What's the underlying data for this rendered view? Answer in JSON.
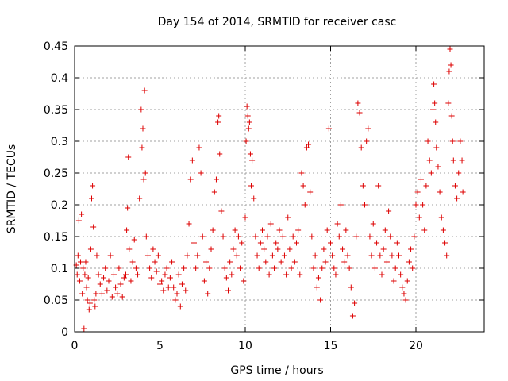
{
  "chart_data": {
    "type": "scatter",
    "title": "Day 154 of 2014, SRMTID for receiver casc",
    "xlabel": "GPS time / hours",
    "ylabel": "SRMTID / TECUs",
    "xlim": [
      0,
      24
    ],
    "ylim": [
      0,
      0.45
    ],
    "xticks": [
      {
        "value": 0,
        "label": "0"
      },
      {
        "value": 5,
        "label": "5"
      },
      {
        "value": 10,
        "label": "10"
      },
      {
        "value": 15,
        "label": "15"
      },
      {
        "value": 20,
        "label": "20"
      }
    ],
    "yticks": [
      {
        "value": 0,
        "label": "0"
      },
      {
        "value": 0.05,
        "label": "0.05"
      },
      {
        "value": 0.1,
        "label": "0.1"
      },
      {
        "value": 0.15,
        "label": "0.15"
      },
      {
        "value": 0.2,
        "label": "0.2"
      },
      {
        "value": 0.25,
        "label": "0.25"
      },
      {
        "value": 0.3,
        "label": "0.3"
      },
      {
        "value": 0.35,
        "label": "0.35"
      },
      {
        "value": 0.4,
        "label": "0.4"
      },
      {
        "value": 0.45,
        "label": "0.45"
      }
    ],
    "grid": true,
    "marker": "+",
    "color": "#dd0000",
    "series": [
      {
        "name": "SRMTID",
        "points": [
          [
            0.1,
            0.105
          ],
          [
            0.15,
            0.09
          ],
          [
            0.2,
            0.12
          ],
          [
            0.25,
            0.175
          ],
          [
            0.3,
            0.08
          ],
          [
            0.35,
            0.11
          ],
          [
            0.4,
            0.185
          ],
          [
            0.45,
            0.06
          ],
          [
            0.5,
            0.1
          ],
          [
            0.55,
            0.005
          ],
          [
            0.6,
            0.09
          ],
          [
            0.65,
            0.11
          ],
          [
            0.7,
            0.07
          ],
          [
            0.75,
            0.05
          ],
          [
            0.8,
            0.085
          ],
          [
            0.85,
            0.035
          ],
          [
            0.9,
            0.045
          ],
          [
            0.95,
            0.13
          ],
          [
            1.0,
            0.21
          ],
          [
            1.05,
            0.23
          ],
          [
            1.1,
            0.165
          ],
          [
            1.15,
            0.05
          ],
          [
            1.2,
            0.04
          ],
          [
            1.25,
            0.06
          ],
          [
            1.3,
            0.12
          ],
          [
            1.4,
            0.09
          ],
          [
            1.5,
            0.075
          ],
          [
            1.6,
            0.06
          ],
          [
            1.7,
            0.085
          ],
          [
            1.8,
            0.1
          ],
          [
            1.9,
            0.065
          ],
          [
            2.0,
            0.08
          ],
          [
            2.1,
            0.12
          ],
          [
            2.2,
            0.055
          ],
          [
            2.3,
            0.09
          ],
          [
            2.4,
            0.07
          ],
          [
            2.5,
            0.06
          ],
          [
            2.6,
            0.1
          ],
          [
            2.7,
            0.075
          ],
          [
            2.8,
            0.055
          ],
          [
            2.9,
            0.085
          ],
          [
            3.0,
            0.09
          ],
          [
            3.05,
            0.16
          ],
          [
            3.1,
            0.195
          ],
          [
            3.15,
            0.275
          ],
          [
            3.2,
            0.13
          ],
          [
            3.3,
            0.08
          ],
          [
            3.4,
            0.11
          ],
          [
            3.5,
            0.145
          ],
          [
            3.6,
            0.1
          ],
          [
            3.7,
            0.09
          ],
          [
            3.8,
            0.21
          ],
          [
            3.9,
            0.35
          ],
          [
            3.95,
            0.29
          ],
          [
            4.0,
            0.32
          ],
          [
            4.05,
            0.24
          ],
          [
            4.1,
            0.38
          ],
          [
            4.15,
            0.25
          ],
          [
            4.2,
            0.15
          ],
          [
            4.3,
            0.12
          ],
          [
            4.4,
            0.1
          ],
          [
            4.5,
            0.085
          ],
          [
            4.6,
            0.13
          ],
          [
            4.7,
            0.11
          ],
          [
            4.8,
            0.095
          ],
          [
            4.9,
            0.12
          ],
          [
            5.0,
            0.075
          ],
          [
            5.1,
            0.08
          ],
          [
            5.2,
            0.065
          ],
          [
            5.3,
            0.09
          ],
          [
            5.4,
            0.1
          ],
          [
            5.5,
            0.07
          ],
          [
            5.6,
            0.085
          ],
          [
            5.7,
            0.11
          ],
          [
            5.8,
            0.07
          ],
          [
            5.9,
            0.05
          ],
          [
            6.0,
            0.06
          ],
          [
            6.1,
            0.09
          ],
          [
            6.2,
            0.04
          ],
          [
            6.3,
            0.075
          ],
          [
            6.4,
            0.1
          ],
          [
            6.5,
            0.065
          ],
          [
            6.6,
            0.12
          ],
          [
            6.7,
            0.17
          ],
          [
            6.8,
            0.24
          ],
          [
            6.9,
            0.27
          ],
          [
            7.0,
            0.14
          ],
          [
            7.1,
            0.1
          ],
          [
            7.2,
            0.12
          ],
          [
            7.3,
            0.29
          ],
          [
            7.4,
            0.25
          ],
          [
            7.5,
            0.15
          ],
          [
            7.6,
            0.08
          ],
          [
            7.7,
            0.11
          ],
          [
            7.8,
            0.06
          ],
          [
            7.9,
            0.1
          ],
          [
            8.0,
            0.13
          ],
          [
            8.1,
            0.16
          ],
          [
            8.2,
            0.22
          ],
          [
            8.3,
            0.24
          ],
          [
            8.4,
            0.33
          ],
          [
            8.45,
            0.34
          ],
          [
            8.5,
            0.28
          ],
          [
            8.6,
            0.19
          ],
          [
            8.7,
            0.15
          ],
          [
            8.8,
            0.1
          ],
          [
            8.9,
            0.085
          ],
          [
            9.0,
            0.065
          ],
          [
            9.1,
            0.11
          ],
          [
            9.2,
            0.09
          ],
          [
            9.3,
            0.13
          ],
          [
            9.4,
            0.16
          ],
          [
            9.5,
            0.12
          ],
          [
            9.6,
            0.15
          ],
          [
            9.7,
            0.1
          ],
          [
            9.8,
            0.14
          ],
          [
            9.9,
            0.08
          ],
          [
            10.0,
            0.18
          ],
          [
            10.05,
            0.3
          ],
          [
            10.1,
            0.355
          ],
          [
            10.15,
            0.34
          ],
          [
            10.2,
            0.32
          ],
          [
            10.25,
            0.33
          ],
          [
            10.3,
            0.28
          ],
          [
            10.35,
            0.23
          ],
          [
            10.4,
            0.27
          ],
          [
            10.5,
            0.21
          ],
          [
            10.6,
            0.15
          ],
          [
            10.7,
            0.12
          ],
          [
            10.8,
            0.1
          ],
          [
            10.9,
            0.14
          ],
          [
            11.0,
            0.16
          ],
          [
            11.1,
            0.13
          ],
          [
            11.2,
            0.11
          ],
          [
            11.3,
            0.15
          ],
          [
            11.4,
            0.09
          ],
          [
            11.5,
            0.17
          ],
          [
            11.6,
            0.12
          ],
          [
            11.7,
            0.1
          ],
          [
            11.8,
            0.14
          ],
          [
            11.9,
            0.13
          ],
          [
            12.0,
            0.16
          ],
          [
            12.1,
            0.11
          ],
          [
            12.2,
            0.15
          ],
          [
            12.3,
            0.12
          ],
          [
            12.4,
            0.09
          ],
          [
            12.5,
            0.18
          ],
          [
            12.6,
            0.13
          ],
          [
            12.7,
            0.1
          ],
          [
            12.8,
            0.15
          ],
          [
            12.9,
            0.11
          ],
          [
            13.0,
            0.14
          ],
          [
            13.1,
            0.16
          ],
          [
            13.2,
            0.09
          ],
          [
            13.3,
            0.25
          ],
          [
            13.4,
            0.23
          ],
          [
            13.5,
            0.2
          ],
          [
            13.6,
            0.29
          ],
          [
            13.7,
            0.295
          ],
          [
            13.8,
            0.22
          ],
          [
            13.9,
            0.15
          ],
          [
            14.0,
            0.1
          ],
          [
            14.1,
            0.12
          ],
          [
            14.2,
            0.07
          ],
          [
            14.3,
            0.085
          ],
          [
            14.4,
            0.05
          ],
          [
            14.5,
            0.1
          ],
          [
            14.6,
            0.13
          ],
          [
            14.7,
            0.11
          ],
          [
            14.8,
            0.16
          ],
          [
            14.9,
            0.32
          ],
          [
            15.0,
            0.14
          ],
          [
            15.1,
            0.12
          ],
          [
            15.2,
            0.1
          ],
          [
            15.3,
            0.09
          ],
          [
            15.4,
            0.17
          ],
          [
            15.5,
            0.15
          ],
          [
            15.6,
            0.2
          ],
          [
            15.7,
            0.13
          ],
          [
            15.8,
            0.11
          ],
          [
            15.9,
            0.16
          ],
          [
            16.0,
            0.12
          ],
          [
            16.1,
            0.1
          ],
          [
            16.2,
            0.07
          ],
          [
            16.3,
            0.025
          ],
          [
            16.4,
            0.045
          ],
          [
            16.5,
            0.15
          ],
          [
            16.6,
            0.36
          ],
          [
            16.7,
            0.345
          ],
          [
            16.8,
            0.29
          ],
          [
            16.9,
            0.23
          ],
          [
            17.0,
            0.2
          ],
          [
            17.1,
            0.3
          ],
          [
            17.2,
            0.32
          ],
          [
            17.3,
            0.15
          ],
          [
            17.4,
            0.12
          ],
          [
            17.5,
            0.17
          ],
          [
            17.6,
            0.1
          ],
          [
            17.7,
            0.14
          ],
          [
            17.8,
            0.23
          ],
          [
            17.9,
            0.12
          ],
          [
            18.0,
            0.09
          ],
          [
            18.1,
            0.13
          ],
          [
            18.2,
            0.16
          ],
          [
            18.3,
            0.11
          ],
          [
            18.4,
            0.19
          ],
          [
            18.5,
            0.15
          ],
          [
            18.6,
            0.12
          ],
          [
            18.7,
            0.08
          ],
          [
            18.8,
            0.1
          ],
          [
            18.9,
            0.14
          ],
          [
            19.0,
            0.12
          ],
          [
            19.1,
            0.09
          ],
          [
            19.2,
            0.07
          ],
          [
            19.3,
            0.06
          ],
          [
            19.4,
            0.05
          ],
          [
            19.5,
            0.08
          ],
          [
            19.6,
            0.11
          ],
          [
            19.7,
            0.13
          ],
          [
            19.8,
            0.1
          ],
          [
            19.9,
            0.15
          ],
          [
            20.0,
            0.2
          ],
          [
            20.1,
            0.22
          ],
          [
            20.2,
            0.18
          ],
          [
            20.3,
            0.24
          ],
          [
            20.4,
            0.2
          ],
          [
            20.5,
            0.16
          ],
          [
            20.6,
            0.23
          ],
          [
            20.7,
            0.3
          ],
          [
            20.8,
            0.27
          ],
          [
            20.9,
            0.25
          ],
          [
            21.0,
            0.35
          ],
          [
            21.05,
            0.39
          ],
          [
            21.1,
            0.36
          ],
          [
            21.15,
            0.33
          ],
          [
            21.2,
            0.29
          ],
          [
            21.3,
            0.26
          ],
          [
            21.4,
            0.22
          ],
          [
            21.5,
            0.18
          ],
          [
            21.6,
            0.16
          ],
          [
            21.7,
            0.14
          ],
          [
            21.8,
            0.12
          ],
          [
            21.9,
            0.36
          ],
          [
            21.95,
            0.41
          ],
          [
            22.0,
            0.445
          ],
          [
            22.05,
            0.42
          ],
          [
            22.1,
            0.34
          ],
          [
            22.15,
            0.3
          ],
          [
            22.2,
            0.27
          ],
          [
            22.3,
            0.23
          ],
          [
            22.4,
            0.21
          ],
          [
            22.5,
            0.25
          ],
          [
            22.6,
            0.3
          ],
          [
            22.7,
            0.27
          ],
          [
            22.75,
            0.22
          ]
        ]
      }
    ]
  }
}
